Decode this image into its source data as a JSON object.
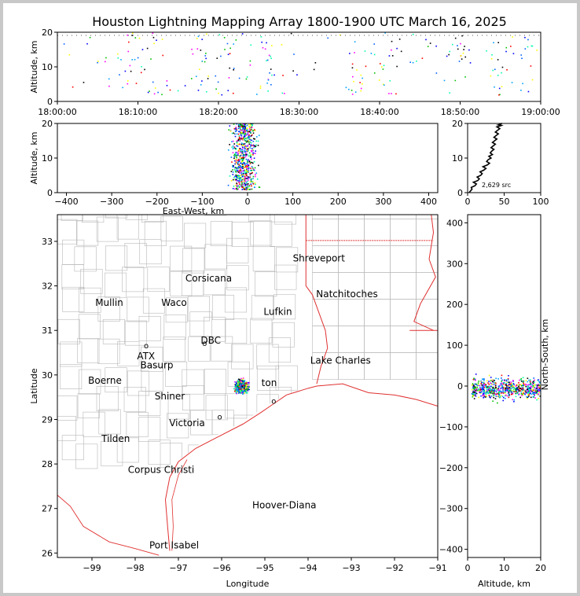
{
  "title": "Houston Lightning Mapping Array 1800-1900 UTC March 16, 2025",
  "colors": {
    "frame": "#c8c8c8",
    "state_line": "#e03030",
    "coast": "#e03030",
    "county_line": "#b8b8b8",
    "grid": "#dcdcdc"
  },
  "chart_data": [
    {
      "id": "time_height",
      "type": "scatter",
      "ylabel": "Altitude, km",
      "xticks": [
        "18:00:00",
        "18:10:00",
        "18:20:00",
        "18:30:00",
        "18:40:00",
        "18:50:00",
        "19:00:00"
      ],
      "xlim_min": [
        0,
        60
      ],
      "ylim": [
        0,
        20
      ],
      "yticks": [
        0,
        10,
        20
      ]
    },
    {
      "id": "ew_height",
      "type": "scatter",
      "xlabel": "East-West, km",
      "ylabel": "Altitude, km",
      "xlim": [
        -420,
        420
      ],
      "xticks": [
        -400,
        -300,
        -200,
        -100,
        0,
        100,
        200,
        300,
        400
      ],
      "ylim": [
        0,
        20
      ],
      "yticks": [
        0,
        10,
        20
      ]
    },
    {
      "id": "altitude_histogram",
      "type": "line",
      "xlim": [
        0,
        100
      ],
      "xticks": [
        0,
        50,
        100
      ],
      "ylim": [
        0,
        20
      ],
      "yticks": [
        0,
        10,
        20
      ],
      "annotation": "2,629 src",
      "x": [
        2,
        4,
        6,
        5,
        10,
        12,
        8,
        14,
        16,
        13,
        18,
        20,
        17,
        22,
        25,
        21,
        27,
        30,
        26,
        28,
        32,
        29,
        34,
        31,
        33,
        36,
        32,
        35,
        38,
        34,
        37,
        40,
        36,
        39,
        42,
        38,
        41,
        44,
        40,
        43,
        46,
        42,
        45,
        44,
        47
      ],
      "y": [
        0,
        0.5,
        1,
        1.5,
        2,
        2.5,
        3,
        3.5,
        4,
        4.5,
        5,
        5.5,
        6,
        6.5,
        7,
        7.5,
        8,
        8.5,
        9,
        9.5,
        10,
        10.5,
        11,
        11.5,
        12,
        12.5,
        13,
        13.5,
        14,
        14.5,
        15,
        15.5,
        16,
        16.5,
        17,
        17.5,
        18,
        18.5,
        19,
        19.2,
        19.4,
        19.6,
        19.8,
        19.9,
        20
      ]
    },
    {
      "id": "plan_view",
      "type": "map",
      "xlabel": "Longitude",
      "ylabel": "Latitude",
      "xlim": [
        -99.8,
        -91
      ],
      "xticks": [
        -99,
        -98,
        -97,
        -96,
        -95,
        -94,
        -93,
        -92,
        -91
      ],
      "ylim": [
        25.9,
        33.6
      ],
      "yticks": [
        26,
        27,
        28,
        29,
        30,
        31,
        32,
        33
      ]
    },
    {
      "id": "ns_height",
      "type": "scatter",
      "xlabel": "Altitude, km",
      "ylabel": "North-South, km",
      "xlim": [
        0,
        20
      ],
      "xticks": [
        0,
        10,
        20
      ],
      "ylim": [
        -420,
        420
      ],
      "yticks": [
        -400,
        -300,
        -200,
        -100,
        0,
        100,
        200,
        300,
        400
      ]
    }
  ],
  "map_labels": [
    {
      "text": "Shreveport",
      "lon": -93.75,
      "lat": 32.55,
      "color": "#000000"
    },
    {
      "text": "Corsicana",
      "lon": -96.3,
      "lat": 32.1,
      "color": "#000000"
    },
    {
      "text": "Mullin",
      "lon": -98.6,
      "lat": 31.55,
      "color": "#ff7f2a"
    },
    {
      "text": "Waco",
      "lon": -97.1,
      "lat": 31.55,
      "color": "#000000"
    },
    {
      "text": "Natchitoches",
      "lon": -93.1,
      "lat": 31.75,
      "color": "#000000"
    },
    {
      "text": "Lufkin",
      "lon": -94.7,
      "lat": 31.35,
      "color": "#000000"
    },
    {
      "text": "DBC",
      "lon": -96.25,
      "lat": 30.7,
      "color": "#000000"
    },
    {
      "text": "ATX",
      "lon": -97.75,
      "lat": 30.35,
      "color": "#ff7f2a"
    },
    {
      "text": "Basurp",
      "lon": -97.5,
      "lat": 30.15,
      "color": "#000000"
    },
    {
      "text": "Lake Charles",
      "lon": -93.25,
      "lat": 30.25,
      "color": "#000000"
    },
    {
      "text": "Boerne",
      "lon": -98.7,
      "lat": 29.8,
      "color": "#000000"
    },
    {
      "text": "ton",
      "lon": -94.9,
      "lat": 29.75,
      "color": "#ffaa00"
    },
    {
      "text": "Shiner",
      "lon": -97.2,
      "lat": 29.45,
      "color": "#000000"
    },
    {
      "text": "Victoria",
      "lon": -96.8,
      "lat": 28.85,
      "color": "#000000"
    },
    {
      "text": "Tilden",
      "lon": -98.45,
      "lat": 28.5,
      "color": "#000000"
    },
    {
      "text": "Corpus Christi",
      "lon": -97.4,
      "lat": 27.8,
      "color": "#000000"
    },
    {
      "text": "Hoover-Diana",
      "lon": -94.55,
      "lat": 27.0,
      "color": "#0000ff"
    },
    {
      "text": "Port Isabel",
      "lon": -97.1,
      "lat": 26.1,
      "color": "#000000"
    }
  ]
}
